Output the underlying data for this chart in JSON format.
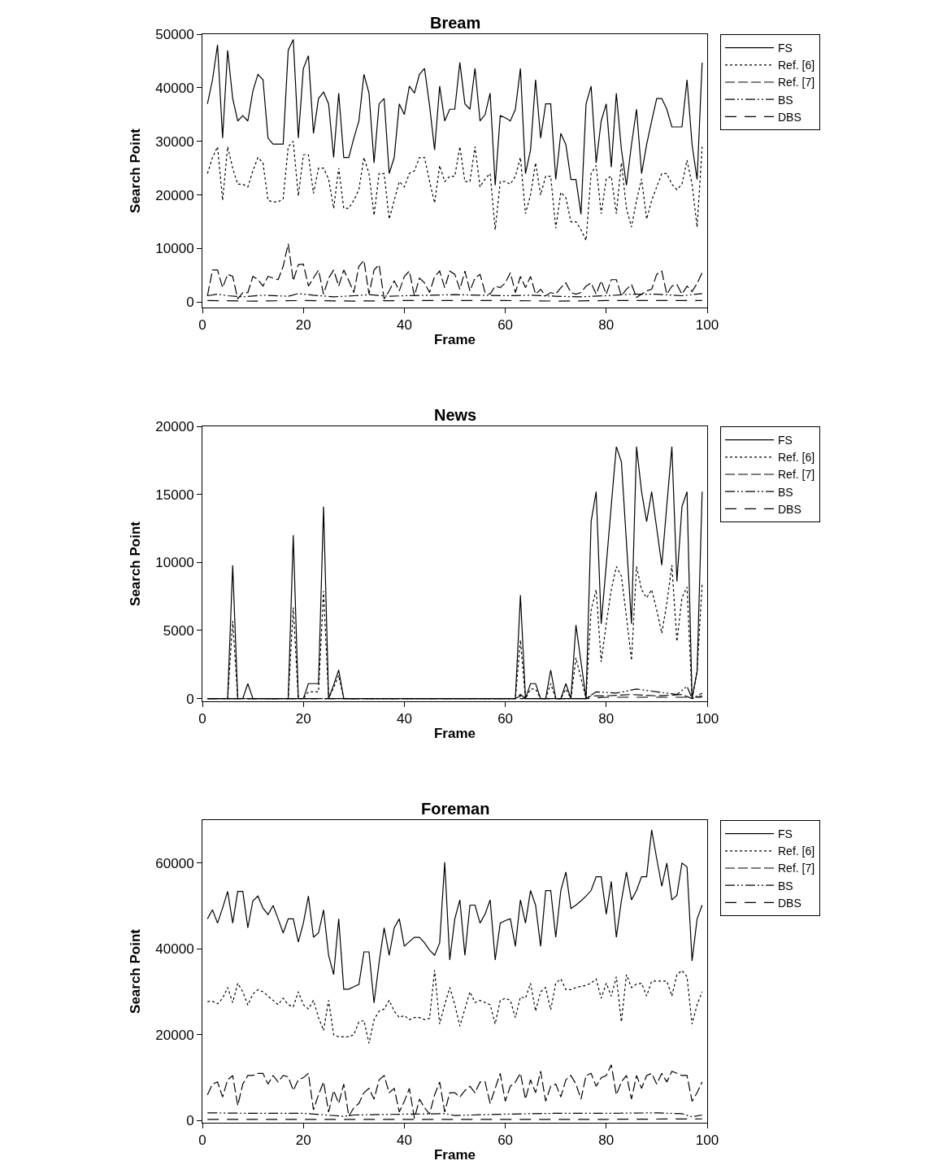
{
  "chart_data": [
    {
      "type": "line",
      "title": "Bream",
      "xlabel": "Frame",
      "ylabel": "Search Point",
      "legend": "right",
      "xlim": [
        0,
        100
      ],
      "xticks": [
        0,
        20,
        40,
        60,
        80,
        100
      ],
      "ylim": [
        -1000,
        50000
      ],
      "yticks": [
        0,
        10000,
        20000,
        30000,
        40000,
        50000
      ],
      "x": [
        1,
        2,
        3,
        4,
        5,
        6,
        7,
        8,
        9,
        10,
        11,
        12,
        13,
        14,
        15,
        16,
        17,
        18,
        19,
        20,
        21,
        22,
        23,
        24,
        25,
        26,
        27,
        28,
        29,
        30,
        31,
        32,
        33,
        34,
        35,
        36,
        37,
        38,
        39,
        40,
        41,
        42,
        43,
        44,
        45,
        46,
        47,
        48,
        49,
        50,
        51,
        52,
        53,
        54,
        55,
        56,
        57,
        58,
        59,
        60,
        61,
        62,
        63,
        64,
        65,
        66,
        67,
        68,
        69,
        70,
        71,
        72,
        73,
        74,
        75,
        76,
        77,
        78,
        79,
        80,
        81,
        82,
        83,
        84,
        85,
        86,
        87,
        88,
        89,
        90,
        91,
        92,
        93,
        94,
        95,
        96,
        97,
        98,
        99
      ],
      "series": [
        {
          "name": "FS",
          "color": "#000000",
          "line_style": "solid",
          "values": [
            37000,
            41500,
            48000,
            30600,
            47000,
            38000,
            33800,
            34800,
            33800,
            39400,
            42500,
            41500,
            30600,
            29500,
            29500,
            29500,
            47000,
            49000,
            30600,
            43600,
            46000,
            31500,
            38000,
            39200,
            37000,
            27000,
            39000,
            27000,
            27000,
            30600,
            33800,
            42500,
            39000,
            26000,
            37000,
            38000,
            24000,
            27000,
            37000,
            35000,
            40300,
            39000,
            42500,
            43600,
            36700,
            28400,
            40300,
            33800,
            36000,
            36000,
            44700,
            37000,
            36000,
            43600,
            33800,
            35000,
            39000,
            21800,
            34800,
            34400,
            33800,
            36000,
            43600,
            24000,
            28400,
            41500,
            30600,
            37000,
            37000,
            22900,
            31500,
            29400,
            22900,
            22900,
            16400,
            37000,
            40300,
            26000,
            33800,
            37000,
            25200,
            39000,
            28500,
            21800,
            29400,
            36000,
            24000,
            29400,
            33800,
            38000,
            38000,
            36000,
            32700,
            32700,
            32700,
            41500,
            29400,
            22900,
            44700
          ]
        },
        {
          "name": "Ref. [6]",
          "color": "#000000",
          "line_style": "dotted",
          "values": [
            24000,
            27000,
            29000,
            19000,
            29000,
            25000,
            22000,
            22000,
            21500,
            24500,
            27000,
            26000,
            19000,
            18700,
            18700,
            19300,
            29000,
            30000,
            19800,
            27500,
            27500,
            20300,
            25000,
            25000,
            23000,
            17500,
            25000,
            17500,
            17500,
            19000,
            21000,
            27000,
            24000,
            16200,
            24000,
            24000,
            15500,
            19000,
            22500,
            21500,
            24000,
            24500,
            27000,
            27000,
            22500,
            18500,
            25500,
            22500,
            23500,
            23500,
            29000,
            22500,
            22500,
            29000,
            21500,
            23000,
            24000,
            13500,
            22500,
            22500,
            22000,
            23500,
            27000,
            16500,
            20000,
            26000,
            20000,
            23500,
            23500,
            13800,
            20500,
            19500,
            15000,
            15000,
            13500,
            11500,
            24000,
            25500,
            16500,
            23000,
            23500,
            16500,
            26000,
            17500,
            14000,
            19000,
            23000,
            15500,
            19000,
            21500,
            24000,
            24000,
            22000,
            21000,
            22000,
            26500,
            22000,
            14000,
            29000
          ]
        },
        {
          "name": "Ref. [7]",
          "color": "#000000",
          "line_style": "dashed",
          "values": [
            1200,
            6000,
            6000,
            2700,
            5200,
            4800,
            600,
            1800,
            1800,
            4800,
            4200,
            3000,
            4800,
            4500,
            4200,
            6700,
            10900,
            4000,
            7000,
            7100,
            3000,
            4500,
            6000,
            1500,
            4500,
            6000,
            3000,
            6000,
            4000,
            1800,
            6700,
            7800,
            1500,
            6000,
            7000,
            600,
            2100,
            4000,
            2100,
            4800,
            5800,
            1200,
            4500,
            3600,
            1800,
            4800,
            5800,
            2700,
            5800,
            5200,
            2400,
            5800,
            2100,
            4500,
            5200,
            1800,
            1500,
            3000,
            2700,
            3600,
            5500,
            1800,
            4800,
            2700,
            4800,
            1500,
            2400,
            1200,
            1800,
            1500,
            2700,
            3600,
            1800,
            1500,
            1800,
            3000,
            3600,
            1500,
            4000,
            1500,
            4200,
            4200,
            1200,
            2400,
            3300,
            900,
            1500,
            2100,
            2400,
            5200,
            5800,
            1500,
            3000,
            3300,
            1500,
            3000,
            2000,
            3500,
            5500
          ]
        },
        {
          "name": "BS",
          "color": "#000000",
          "line_style": "dashdot",
          "x": [
            1,
            3,
            5,
            8,
            12,
            17,
            19,
            22,
            26,
            30,
            33,
            37,
            40,
            45,
            50,
            55,
            60,
            65,
            70,
            75,
            80,
            85,
            90,
            95,
            99
          ],
          "values": [
            1200,
            1500,
            1200,
            1000,
            1300,
            1100,
            1600,
            1300,
            1000,
            1200,
            1400,
            1100,
            1200,
            1300,
            1400,
            1300,
            1200,
            1300,
            1100,
            1000,
            1200,
            1500,
            1500,
            1200,
            1600
          ]
        },
        {
          "name": "DBS",
          "color": "#000000",
          "line_style": "longdash",
          "x": [
            1,
            10,
            20,
            30,
            40,
            50,
            60,
            70,
            80,
            90,
            99
          ],
          "values": [
            300,
            200,
            300,
            200,
            300,
            300,
            300,
            200,
            300,
            300,
            300
          ]
        }
      ]
    },
    {
      "type": "line",
      "title": "News",
      "xlabel": "Frame",
      "ylabel": "Search Point",
      "legend": "right",
      "xlim": [
        0,
        100
      ],
      "xticks": [
        0,
        20,
        40,
        60,
        80,
        100
      ],
      "ylim": [
        -200,
        20000
      ],
      "yticks": [
        0,
        5000,
        10000,
        15000,
        20000
      ],
      "x": [
        1,
        2,
        3,
        4,
        5,
        6,
        7,
        8,
        9,
        10,
        11,
        12,
        13,
        14,
        15,
        16,
        17,
        18,
        19,
        20,
        21,
        22,
        23,
        24,
        25,
        26,
        27,
        28,
        29,
        30,
        31,
        32,
        33,
        34,
        35,
        36,
        37,
        38,
        39,
        40,
        41,
        42,
        43,
        44,
        45,
        46,
        47,
        48,
        49,
        50,
        51,
        52,
        53,
        54,
        55,
        56,
        57,
        58,
        59,
        60,
        61,
        62,
        63,
        64,
        65,
        66,
        67,
        68,
        69,
        70,
        71,
        72,
        73,
        74,
        75,
        76,
        77,
        78,
        79,
        80,
        81,
        82,
        83,
        84,
        85,
        86,
        87,
        88,
        89,
        90,
        91,
        92,
        93,
        94,
        95,
        96,
        97,
        98,
        99
      ],
      "series": [
        {
          "name": "FS",
          "color": "#000000",
          "line_style": "solid",
          "values": [
            0,
            0,
            0,
            0,
            0,
            9800,
            0,
            0,
            1100,
            0,
            0,
            0,
            0,
            0,
            0,
            0,
            0,
            12000,
            0,
            0,
            1100,
            1100,
            1100,
            14100,
            0,
            1000,
            2100,
            0,
            0,
            0,
            0,
            0,
            0,
            0,
            0,
            0,
            0,
            0,
            0,
            0,
            0,
            0,
            0,
            0,
            0,
            0,
            0,
            0,
            0,
            0,
            0,
            0,
            0,
            0,
            0,
            0,
            0,
            0,
            0,
            0,
            0,
            0,
            7600,
            0,
            1100,
            1100,
            0,
            0,
            2100,
            0,
            0,
            1100,
            0,
            5400,
            2700,
            0,
            13000,
            15200,
            5500,
            9800,
            14200,
            18500,
            17400,
            11500,
            5500,
            18500,
            15200,
            13000,
            15200,
            12500,
            9800,
            14200,
            18500,
            8600,
            14100,
            15200,
            0,
            2000,
            15200
          ]
        },
        {
          "name": "Ref. [6]",
          "color": "#000000",
          "line_style": "dotted",
          "values": [
            0,
            0,
            0,
            0,
            0,
            5700,
            0,
            0,
            0,
            0,
            0,
            0,
            0,
            0,
            0,
            0,
            0,
            6700,
            0,
            0,
            500,
            500,
            500,
            7900,
            0,
            800,
            1700,
            0,
            0,
            0,
            0,
            0,
            0,
            0,
            0,
            0,
            0,
            0,
            0,
            0,
            0,
            0,
            0,
            0,
            0,
            0,
            0,
            0,
            0,
            0,
            0,
            0,
            0,
            0,
            0,
            0,
            0,
            0,
            0,
            0,
            0,
            0,
            4300,
            0,
            700,
            700,
            0,
            0,
            1100,
            0,
            0,
            700,
            0,
            3000,
            1500,
            0,
            6500,
            8000,
            2700,
            5500,
            8000,
            9700,
            9000,
            6000,
            2800,
            9700,
            8000,
            7400,
            8000,
            6500,
            4800,
            7000,
            9800,
            4200,
            7400,
            8200,
            0,
            2000,
            8500
          ]
        },
        {
          "name": "Ref. [7]",
          "color": "#000000",
          "line_style": "dashed",
          "x": [
            1,
            62,
            63,
            64,
            76,
            77,
            80,
            85,
            90,
            95,
            97,
            99
          ],
          "values": [
            0,
            0,
            300,
            0,
            0,
            200,
            200,
            300,
            200,
            300,
            0,
            200
          ]
        },
        {
          "name": "BS",
          "color": "#000000",
          "line_style": "dashdot",
          "x": [
            1,
            62,
            63,
            64,
            76,
            78,
            82,
            86,
            90,
            94,
            96,
            97,
            99
          ],
          "values": [
            0,
            0,
            200,
            0,
            0,
            500,
            400,
            700,
            500,
            300,
            900,
            0,
            400
          ]
        },
        {
          "name": "DBS",
          "color": "#000000",
          "line_style": "longdash",
          "x": [
            1,
            76,
            80,
            90,
            99
          ],
          "values": [
            0,
            0,
            100,
            100,
            100
          ]
        }
      ]
    },
    {
      "type": "line",
      "title": "Foreman",
      "xlabel": "Frame",
      "ylabel": "Search Point",
      "legend": "right",
      "xlim": [
        0,
        100
      ],
      "xticks": [
        0,
        20,
        40,
        60,
        80,
        100
      ],
      "ylim": [
        -500,
        70000
      ],
      "yticks": [
        0,
        20000,
        40000,
        60000
      ],
      "x": [
        1,
        2,
        3,
        4,
        5,
        6,
        7,
        8,
        9,
        10,
        11,
        12,
        13,
        14,
        15,
        16,
        17,
        18,
        19,
        20,
        21,
        22,
        23,
        24,
        25,
        26,
        27,
        28,
        29,
        30,
        31,
        32,
        33,
        34,
        35,
        36,
        37,
        38,
        39,
        40,
        41,
        42,
        43,
        44,
        45,
        46,
        47,
        48,
        49,
        50,
        51,
        52,
        53,
        54,
        55,
        56,
        57,
        58,
        59,
        60,
        61,
        62,
        63,
        64,
        65,
        66,
        67,
        68,
        69,
        70,
        71,
        72,
        73,
        74,
        75,
        76,
        77,
        78,
        79,
        80,
        81,
        82,
        83,
        84,
        85,
        86,
        87,
        88,
        89,
        90,
        91,
        92,
        93,
        94,
        95,
        96,
        97,
        98,
        99
      ],
      "series": [
        {
          "name": "FS",
          "color": "#000000",
          "line_style": "solid",
          "values": [
            47000,
            49100,
            46000,
            49500,
            53400,
            46000,
            53400,
            53400,
            44900,
            51200,
            52300,
            49500,
            48000,
            50100,
            47000,
            43700,
            47000,
            47000,
            41600,
            46000,
            52300,
            42700,
            43700,
            49100,
            38500,
            34000,
            47000,
            30600,
            30600,
            31200,
            31700,
            39300,
            39300,
            27400,
            36800,
            44900,
            38500,
            44900,
            47000,
            40600,
            41700,
            42700,
            42700,
            41400,
            39700,
            38500,
            41400,
            60200,
            37400,
            47000,
            51400,
            38500,
            50200,
            50200,
            46000,
            48100,
            51400,
            37400,
            46000,
            46600,
            47000,
            40600,
            51400,
            46000,
            53600,
            50200,
            40600,
            53600,
            53600,
            42700,
            53600,
            57900,
            49400,
            50200,
            51200,
            52300,
            53600,
            56800,
            56800,
            48100,
            55700,
            42700,
            51200,
            57900,
            51400,
            53600,
            56800,
            56800,
            67700,
            61000,
            54600,
            60000,
            51400,
            52500,
            60000,
            59100,
            37200,
            47000,
            50200
          ]
        },
        {
          "name": "Ref. [6]",
          "color": "#000000",
          "line_style": "dotted",
          "values": [
            27700,
            27800,
            27200,
            28500,
            31000,
            27500,
            32000,
            30000,
            26900,
            29500,
            30500,
            30000,
            29000,
            28000,
            27000,
            28500,
            27000,
            26500,
            30000,
            27000,
            26000,
            28000,
            24000,
            21000,
            28000,
            20000,
            19500,
            19500,
            19500,
            20000,
            23000,
            23300,
            18000,
            23500,
            25500,
            26000,
            28000,
            25500,
            24000,
            24500,
            23500,
            24000,
            24000,
            23500,
            23800,
            35000,
            22500,
            27000,
            31000,
            27000,
            22000,
            26000,
            30000,
            27500,
            28000,
            27500,
            27000,
            22500,
            28000,
            28500,
            28000,
            24000,
            28800,
            28500,
            32000,
            25500,
            30000,
            31000,
            25800,
            32000,
            33000,
            30500,
            30500,
            31000,
            31300,
            31500,
            32000,
            33000,
            28500,
            32000,
            29000,
            33500,
            23000,
            34000,
            31000,
            31800,
            32000,
            29000,
            32500,
            32500,
            32500,
            32500,
            29000,
            34000,
            35000,
            33500,
            22500,
            27000,
            30000
          ]
        },
        {
          "name": "Ref. [7]",
          "color": "#000000",
          "line_style": "dashed",
          "values": [
            6000,
            8500,
            9000,
            5500,
            9500,
            10500,
            3500,
            8500,
            10500,
            10500,
            11000,
            11000,
            8500,
            10500,
            9000,
            10500,
            10200,
            7000,
            9500,
            10000,
            11000,
            2500,
            6000,
            9000,
            2000,
            7000,
            4000,
            8500,
            1000,
            3000,
            4000,
            6500,
            7500,
            5000,
            9500,
            10500,
            6500,
            7500,
            2000,
            4500,
            7500,
            500,
            5000,
            3000,
            1500,
            6000,
            9000,
            2000,
            6500,
            6500,
            5500,
            7000,
            8000,
            6500,
            9000,
            9000,
            4000,
            7500,
            11000,
            4500,
            8000,
            9000,
            11000,
            5000,
            9500,
            6500,
            11500,
            4500,
            8000,
            8500,
            5500,
            9500,
            10500,
            8500,
            5000,
            10500,
            11000,
            8000,
            10000,
            10500,
            13000,
            6000,
            9000,
            10500,
            5000,
            10500,
            7500,
            10500,
            11000,
            8500,
            11000,
            9000,
            11500,
            11000,
            10500,
            10500,
            4500,
            6500,
            9000
          ]
        },
        {
          "name": "BS",
          "color": "#000000",
          "line_style": "dashdot",
          "x": [
            1,
            10,
            20,
            28,
            30,
            35,
            40,
            48,
            50,
            60,
            70,
            80,
            90,
            95,
            97,
            99
          ],
          "values": [
            1800,
            1700,
            1700,
            1000,
            1300,
            1400,
            1500,
            1600,
            1200,
            1500,
            1700,
            1700,
            1800,
            1600,
            900,
            1300
          ]
        },
        {
          "name": "DBS",
          "color": "#000000",
          "line_style": "longdash",
          "x": [
            1,
            20,
            40,
            60,
            80,
            99
          ],
          "values": [
            300,
            300,
            300,
            300,
            300,
            400
          ]
        }
      ]
    }
  ]
}
